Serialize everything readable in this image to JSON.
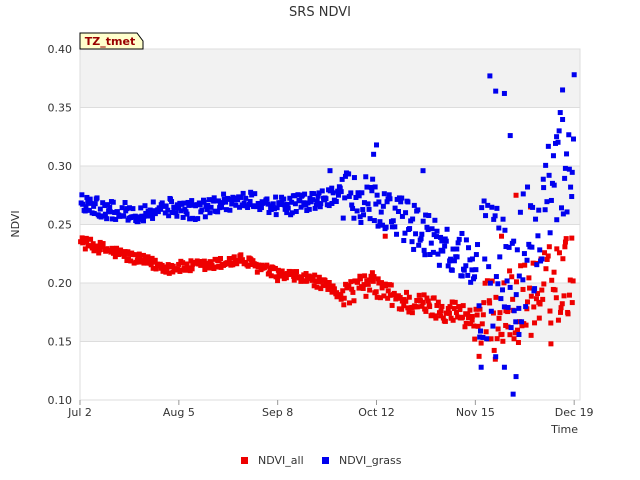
{
  "chart_data": {
    "type": "scatter",
    "title": "SRS NDVI",
    "xlabel": "Time",
    "ylabel": "NDVI",
    "ylim": [
      0.1,
      0.4
    ],
    "xlim_days": [
      0,
      172
    ],
    "x_ticks": [
      {
        "label": "Jul 2",
        "day": 0
      },
      {
        "label": "Aug 5",
        "day": 34
      },
      {
        "label": "Sep 8",
        "day": 68
      },
      {
        "label": "Oct 12",
        "day": 102
      },
      {
        "label": "Nov 15",
        "day": 136
      },
      {
        "label": "Dec 19",
        "day": 170
      }
    ],
    "y_ticks": [
      "0.10",
      "0.15",
      "0.20",
      "0.25",
      "0.30",
      "0.35",
      "0.40"
    ],
    "badge": "TZ_tmet",
    "legend_position": "bottom-center",
    "series": [
      {
        "name": "NDVI_all",
        "color": "#ee0000",
        "trend": [
          [
            0,
            0.235
          ],
          [
            10,
            0.228
          ],
          [
            20,
            0.22
          ],
          [
            30,
            0.213
          ],
          [
            45,
            0.215
          ],
          [
            55,
            0.22
          ],
          [
            68,
            0.207
          ],
          [
            80,
            0.203
          ],
          [
            90,
            0.19
          ],
          [
            100,
            0.2
          ],
          [
            110,
            0.185
          ],
          [
            120,
            0.18
          ],
          [
            130,
            0.175
          ],
          [
            136,
            0.168
          ],
          [
            142,
            0.168
          ],
          [
            150,
            0.18
          ],
          [
            160,
            0.195
          ],
          [
            170,
            0.21
          ]
        ],
        "noise": [
          0.005,
          0.01,
          0.035
        ],
        "outliers": [
          [
            150,
            0.275
          ],
          [
            155,
            0.265
          ],
          [
            162,
            0.148
          ],
          [
            158,
            0.17
          ],
          [
            145,
            0.24
          ],
          [
            105,
            0.24
          ],
          [
            167,
            0.235
          ]
        ]
      },
      {
        "name": "NDVI_grass",
        "color": "#0000ee",
        "trend": [
          [
            0,
            0.27
          ],
          [
            10,
            0.262
          ],
          [
            20,
            0.26
          ],
          [
            30,
            0.265
          ],
          [
            40,
            0.262
          ],
          [
            50,
            0.27
          ],
          [
            60,
            0.27
          ],
          [
            70,
            0.265
          ],
          [
            80,
            0.27
          ],
          [
            90,
            0.275
          ],
          [
            100,
            0.27
          ],
          [
            110,
            0.255
          ],
          [
            120,
            0.24
          ],
          [
            130,
            0.225
          ],
          [
            140,
            0.21
          ],
          [
            150,
            0.21
          ],
          [
            160,
            0.25
          ],
          [
            170,
            0.33
          ]
        ],
        "noise": [
          0.008,
          0.02,
          0.06
        ],
        "outliers": [
          [
            141,
            0.377
          ],
          [
            143,
            0.364
          ],
          [
            146,
            0.362
          ],
          [
            148,
            0.326
          ],
          [
            149,
            0.105
          ],
          [
            151,
            0.156
          ],
          [
            150,
            0.12
          ],
          [
            143,
            0.137
          ],
          [
            138,
            0.128
          ],
          [
            146,
            0.128
          ],
          [
            170,
            0.378
          ],
          [
            166,
            0.365
          ],
          [
            102,
            0.318
          ],
          [
            101,
            0.31
          ],
          [
            86,
            0.296
          ],
          [
            118,
            0.296
          ]
        ]
      }
    ]
  }
}
